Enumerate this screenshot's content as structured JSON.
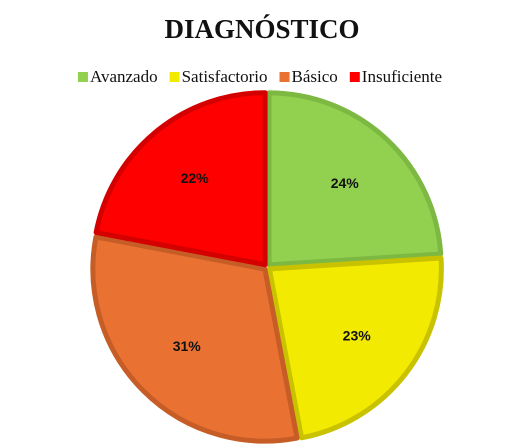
{
  "chart_data": {
    "type": "pie",
    "title": "DIAGNÓSTICO",
    "categories": [
      "Avanzado",
      "Satisfactorio",
      "Básico",
      "Insuficiente"
    ],
    "values": [
      24,
      23,
      31,
      22
    ],
    "value_labels": [
      "24%",
      "23%",
      "31%",
      "22%"
    ],
    "colors": [
      "#92d050",
      "#f2ea00",
      "#e97132",
      "#ff0000"
    ],
    "border_colors": [
      "#7db843",
      "#c9c200",
      "#c75d26",
      "#d40000"
    ],
    "legend": "top"
  }
}
